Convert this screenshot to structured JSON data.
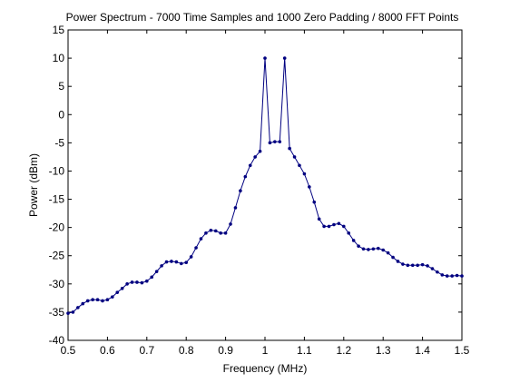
{
  "chart_data": {
    "type": "line",
    "title": "Power Spectrum - 7000 Time Samples and 1000 Zero Padding / 8000 FFT Points",
    "xlabel": "Frequency (MHz)",
    "ylabel": "Power (dBm)",
    "xlim": [
      0.5,
      1.5
    ],
    "ylim": [
      -40,
      15
    ],
    "xticks": [
      0.5,
      0.6,
      0.7,
      0.8,
      0.9,
      1,
      1.1,
      1.2,
      1.3,
      1.4,
      1.5
    ],
    "xtick_labels": [
      "0.5",
      "0.6",
      "0.7",
      "0.8",
      "0.9",
      "1",
      "1.1",
      "1.2",
      "1.3",
      "1.4",
      "1.5"
    ],
    "yticks": [
      -40,
      -35,
      -30,
      -25,
      -20,
      -15,
      -10,
      -5,
      0,
      5,
      10,
      15
    ],
    "ytick_labels": [
      "-40",
      "-35",
      "-30",
      "-25",
      "-20",
      "-15",
      "-10",
      "-5",
      "0",
      "5",
      "10",
      "15"
    ],
    "grid": false,
    "line_color": "#000080",
    "marker": "dot",
    "series": [
      {
        "x": [
          0.5,
          0.5125,
          0.525,
          0.5375,
          0.55,
          0.5625,
          0.575,
          0.5875,
          0.6,
          0.6125,
          0.625,
          0.6375,
          0.65,
          0.6625,
          0.675,
          0.6875,
          0.7,
          0.7125,
          0.725,
          0.7375,
          0.75,
          0.7625,
          0.775,
          0.7875,
          0.8,
          0.8125,
          0.825,
          0.8375,
          0.85,
          0.8625,
          0.875,
          0.8875,
          0.9,
          0.9125,
          0.925,
          0.9375,
          0.95,
          0.9625,
          0.975,
          0.9875,
          1.0,
          1.0125,
          1.025,
          1.0375,
          1.05,
          1.0625,
          1.075,
          1.0875,
          1.1,
          1.1125,
          1.125,
          1.1375,
          1.15,
          1.1625,
          1.175,
          1.1875,
          1.2,
          1.2125,
          1.225,
          1.2375,
          1.25,
          1.2625,
          1.275,
          1.2875,
          1.3,
          1.3125,
          1.325,
          1.3375,
          1.35,
          1.3625,
          1.375,
          1.3875,
          1.4,
          1.4125,
          1.425,
          1.4375,
          1.45,
          1.4625,
          1.475,
          1.4875,
          1.5
        ],
        "values": [
          -35.2,
          -35.0,
          -34.2,
          -33.5,
          -33.0,
          -32.8,
          -32.8,
          -33.0,
          -32.8,
          -32.3,
          -31.5,
          -30.8,
          -30.0,
          -29.7,
          -29.7,
          -29.8,
          -29.5,
          -28.8,
          -27.8,
          -26.8,
          -26.1,
          -26.0,
          -26.1,
          -26.4,
          -26.2,
          -25.2,
          -23.6,
          -22.0,
          -21.0,
          -20.5,
          -20.6,
          -21.0,
          -21.0,
          -19.4,
          -16.5,
          -13.5,
          -11.0,
          -9.0,
          -7.5,
          -6.5,
          10.0,
          -5.0,
          -4.8,
          -4.8,
          10.0,
          -6.0,
          -7.5,
          -9.0,
          -10.5,
          -12.8,
          -15.5,
          -18.5,
          -19.8,
          -19.8,
          -19.5,
          -19.3,
          -19.8,
          -21.0,
          -22.3,
          -23.3,
          -23.8,
          -23.9,
          -23.8,
          -23.7,
          -24.0,
          -24.5,
          -25.3,
          -26.0,
          -26.5,
          -26.7,
          -26.7,
          -26.7,
          -26.6,
          -26.8,
          -27.3,
          -27.9,
          -28.4,
          -28.6,
          -28.6,
          -28.5,
          -28.6
        ]
      }
    ]
  }
}
